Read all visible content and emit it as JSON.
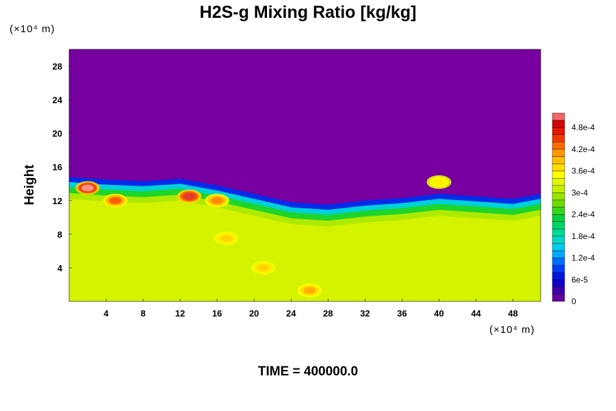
{
  "title": "H2S-g Mixing Ratio [kg/kg]",
  "unit_top": "(×10⁴ m)",
  "unit_bottom": "(×10⁴ m)",
  "time_label": "TIME = 400000.0",
  "chart_data": {
    "type": "heatmap",
    "title": "H2S-g Mixing Ratio [kg/kg]",
    "xlabel": "",
    "ylabel": "Height",
    "x_unit": "(×10⁴ m)",
    "y_unit": "(×10⁴ m)",
    "xlim": [
      0,
      51
    ],
    "ylim": [
      0,
      30
    ],
    "x_ticks": [
      4,
      8,
      12,
      16,
      20,
      24,
      28,
      32,
      36,
      40,
      44,
      48
    ],
    "y_ticks": [
      4,
      8,
      12,
      16,
      20,
      24,
      28
    ],
    "colorbar": {
      "labels": [
        "0",
        "6e-5",
        "1.2e-4",
        "1.8e-4",
        "2.4e-4",
        "3e-4",
        "3.6e-4",
        "4.2e-4",
        "4.8e-4"
      ],
      "values": [
        0,
        6e-05,
        0.00012,
        0.00018,
        0.00024,
        0.0003,
        0.00036,
        0.00042,
        0.00048
      ],
      "max": 0.00052
    },
    "layer_top_profile": {
      "x": [
        0,
        4,
        8,
        12,
        16,
        20,
        24,
        28,
        32,
        36,
        40,
        44,
        48,
        51
      ],
      "top_height": [
        14.8,
        14.5,
        14.3,
        14.6,
        13.8,
        12.8,
        11.8,
        11.5,
        12.0,
        12.3,
        12.8,
        12.5,
        12.2,
        12.8
      ]
    },
    "background_value": 0.00032,
    "upper_value": 0,
    "features": [
      {
        "x": 2,
        "y": 13.5,
        "value": 0.00052
      },
      {
        "x": 5,
        "y": 12,
        "value": 0.00044
      },
      {
        "x": 13,
        "y": 12.5,
        "value": 0.0005
      },
      {
        "x": 16,
        "y": 12,
        "value": 0.00042
      },
      {
        "x": 17,
        "y": 7.5,
        "value": 0.00038
      },
      {
        "x": 21,
        "y": 4,
        "value": 0.00038
      },
      {
        "x": 26,
        "y": 1.3,
        "value": 0.0004
      },
      {
        "x": 40,
        "y": 14.2,
        "value": 0.00036
      }
    ]
  }
}
